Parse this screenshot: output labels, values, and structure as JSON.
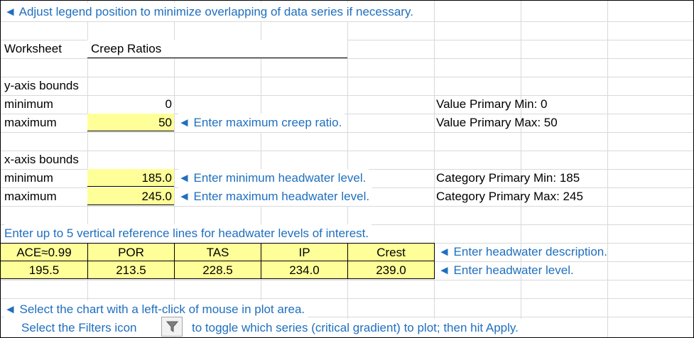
{
  "notes": {
    "legend_hint": "◄ Adjust legend position to minimize overlapping of data series if necessary.",
    "select_chart": "◄ Select the chart with a left-click of mouse in plot area.",
    "filters_prefix": "Select the Filters icon",
    "filters_suffix": "to toggle which series (critical gradient) to plot; then hit Apply."
  },
  "worksheet": {
    "label": "Worksheet",
    "value": "Creep Ratios"
  },
  "y_axis": {
    "heading": "y-axis bounds",
    "min_label": "minimum",
    "min_value": "0",
    "max_label": "maximum",
    "max_value": "50",
    "max_hint": "◄ Enter maximum creep ratio.",
    "status_min": "Value Primary Min: 0",
    "status_max": "Value Primary Max: 50"
  },
  "x_axis": {
    "heading": "x-axis bounds",
    "min_label": "minimum",
    "min_value": "185.0",
    "min_hint": "◄ Enter minimum headwater level.",
    "max_label": "maximum",
    "max_value": "245.0",
    "max_hint": "◄ Enter maximum headwater level.",
    "status_min": "Category Primary Min: 185",
    "status_max": "Category Primary Max: 245"
  },
  "reference_lines": {
    "heading": "Enter up to 5 vertical reference lines for headwater levels of interest.",
    "descriptions": [
      "ACE≈0.99",
      "POR",
      "TAS",
      "IP",
      "Crest"
    ],
    "levels": [
      "195.5",
      "213.5",
      "228.5",
      "234.0",
      "239.0"
    ],
    "description_hint": "◄ Enter headwater description.",
    "level_hint": "◄ Enter headwater level."
  },
  "icons": {
    "filter": "filter-funnel-icon"
  },
  "colors": {
    "hint_blue": "#1f6fbf",
    "input_yellow": "#ffff99",
    "grid": "#d9d9d9"
  }
}
